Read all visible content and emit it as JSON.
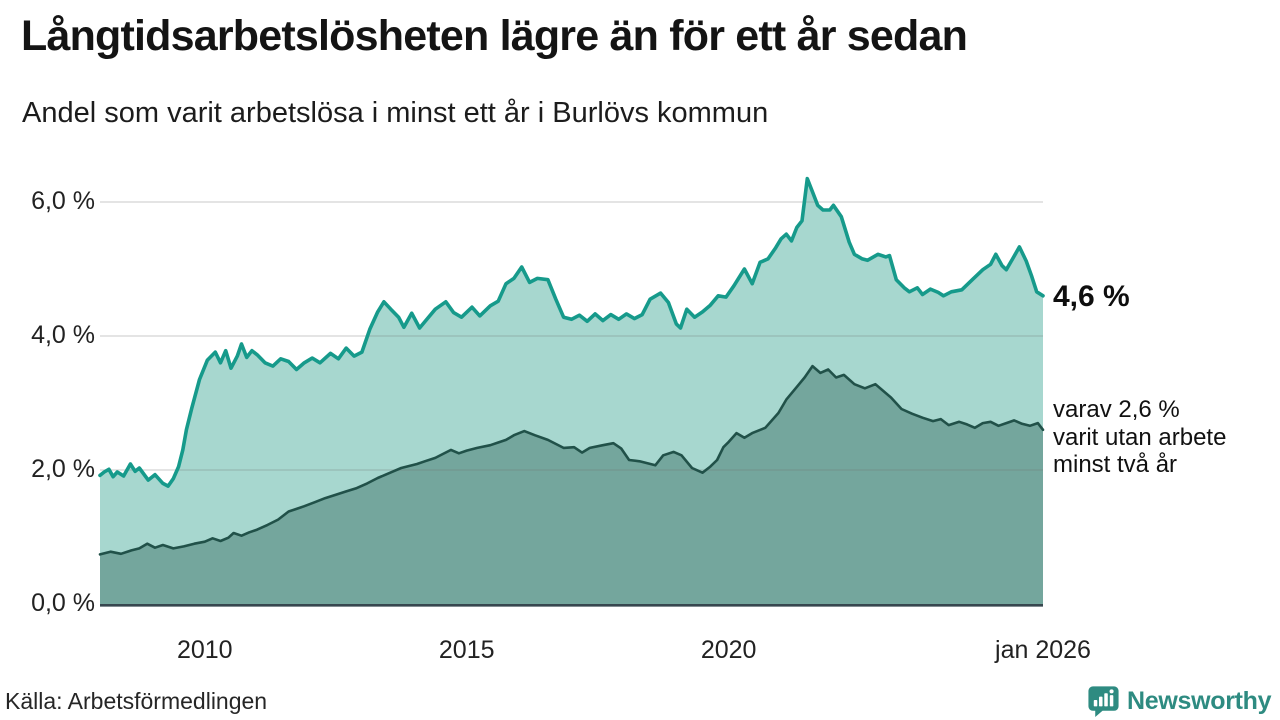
{
  "header": {
    "title": "Långtidsarbetslösheten lägre än för ett år sedan",
    "subtitle": "Andel som varit arbetslösa i minst ett år i Burlövs kommun"
  },
  "annotations": {
    "latest_value": "4,6 %",
    "secondary_line1": "varav 2,6 %",
    "secondary_line2": "varit utan arbete",
    "secondary_line3": "minst två år"
  },
  "footer": {
    "source": "Källa: Arbetsförmedlingen",
    "brand": "Newsworthy"
  },
  "colors": {
    "series1_line": "#169a8b",
    "series1_fill": "#a7d7cf",
    "series2_line": "#215149",
    "series2_fill": "#74a69d",
    "axis_line": "#37474f",
    "grid_line": "rgba(110,110,110,0.25)",
    "brand_teal": "#2e8b81"
  },
  "chart_data": {
    "type": "area",
    "title": "Långtidsarbetslösheten lägre än för ett år sedan",
    "subtitle": "Andel som varit arbetslösa i minst ett år i Burlövs kommun",
    "x_unit": "decimal_year",
    "x_range": [
      2008.0,
      2026.0
    ],
    "ylim": [
      0,
      6.55
    ],
    "grid": true,
    "grid_values": [
      2,
      4,
      6
    ],
    "y_ticks": [
      {
        "value": 0,
        "label": "0,0 %"
      },
      {
        "value": 2,
        "label": "2,0 %"
      },
      {
        "value": 4,
        "label": "4,0 %"
      },
      {
        "value": 6,
        "label": "6,0 %"
      }
    ],
    "x_ticks": [
      {
        "year": 2010,
        "label": "2010"
      },
      {
        "year": 2015,
        "label": "2015"
      },
      {
        "year": 2020,
        "label": "2020"
      },
      {
        "year": 2026,
        "label": "jan 2026"
      }
    ],
    "series": [
      {
        "name": "arbetslösa minst ett år",
        "end_label": "4,6 %",
        "line_color": "#169a8b",
        "fill_color": "#a7d7cf",
        "line_width": 3.6,
        "points": [
          [
            2008.0,
            1.92
          ],
          [
            2008.08,
            1.97
          ],
          [
            2008.17,
            2.01
          ],
          [
            2008.25,
            1.9
          ],
          [
            2008.33,
            1.97
          ],
          [
            2008.45,
            1.91
          ],
          [
            2008.58,
            2.09
          ],
          [
            2008.67,
            1.98
          ],
          [
            2008.75,
            2.03
          ],
          [
            2008.92,
            1.85
          ],
          [
            2009.05,
            1.93
          ],
          [
            2009.2,
            1.8
          ],
          [
            2009.3,
            1.76
          ],
          [
            2009.4,
            1.87
          ],
          [
            2009.5,
            2.05
          ],
          [
            2009.58,
            2.3
          ],
          [
            2009.65,
            2.6
          ],
          [
            2009.75,
            2.92
          ],
          [
            2009.9,
            3.35
          ],
          [
            2010.05,
            3.64
          ],
          [
            2010.2,
            3.76
          ],
          [
            2010.3,
            3.6
          ],
          [
            2010.4,
            3.78
          ],
          [
            2010.5,
            3.52
          ],
          [
            2010.62,
            3.7
          ],
          [
            2010.7,
            3.88
          ],
          [
            2010.8,
            3.68
          ],
          [
            2010.9,
            3.78
          ],
          [
            2011.0,
            3.72
          ],
          [
            2011.15,
            3.6
          ],
          [
            2011.3,
            3.55
          ],
          [
            2011.45,
            3.66
          ],
          [
            2011.6,
            3.62
          ],
          [
            2011.75,
            3.5
          ],
          [
            2011.9,
            3.6
          ],
          [
            2012.05,
            3.67
          ],
          [
            2012.2,
            3.6
          ],
          [
            2012.4,
            3.74
          ],
          [
            2012.55,
            3.66
          ],
          [
            2012.7,
            3.82
          ],
          [
            2012.85,
            3.7
          ],
          [
            2013.0,
            3.76
          ],
          [
            2013.15,
            4.1
          ],
          [
            2013.3,
            4.36
          ],
          [
            2013.42,
            4.51
          ],
          [
            2013.55,
            4.4
          ],
          [
            2013.7,
            4.28
          ],
          [
            2013.8,
            4.13
          ],
          [
            2013.95,
            4.34
          ],
          [
            2014.1,
            4.12
          ],
          [
            2014.25,
            4.26
          ],
          [
            2014.4,
            4.4
          ],
          [
            2014.6,
            4.51
          ],
          [
            2014.75,
            4.35
          ],
          [
            2014.9,
            4.28
          ],
          [
            2015.1,
            4.43
          ],
          [
            2015.25,
            4.3
          ],
          [
            2015.45,
            4.45
          ],
          [
            2015.6,
            4.52
          ],
          [
            2015.75,
            4.78
          ],
          [
            2015.9,
            4.86
          ],
          [
            2016.05,
            5.03
          ],
          [
            2016.2,
            4.8
          ],
          [
            2016.35,
            4.86
          ],
          [
            2016.55,
            4.84
          ],
          [
            2016.7,
            4.55
          ],
          [
            2016.85,
            4.28
          ],
          [
            2017.0,
            4.25
          ],
          [
            2017.15,
            4.31
          ],
          [
            2017.3,
            4.22
          ],
          [
            2017.45,
            4.33
          ],
          [
            2017.6,
            4.23
          ],
          [
            2017.75,
            4.32
          ],
          [
            2017.9,
            4.25
          ],
          [
            2018.05,
            4.33
          ],
          [
            2018.2,
            4.26
          ],
          [
            2018.35,
            4.32
          ],
          [
            2018.5,
            4.55
          ],
          [
            2018.7,
            4.64
          ],
          [
            2018.85,
            4.5
          ],
          [
            2019.0,
            4.18
          ],
          [
            2019.08,
            4.12
          ],
          [
            2019.2,
            4.4
          ],
          [
            2019.35,
            4.28
          ],
          [
            2019.5,
            4.36
          ],
          [
            2019.65,
            4.46
          ],
          [
            2019.8,
            4.6
          ],
          [
            2019.95,
            4.58
          ],
          [
            2020.1,
            4.75
          ],
          [
            2020.3,
            5.0
          ],
          [
            2020.45,
            4.78
          ],
          [
            2020.6,
            5.1
          ],
          [
            2020.75,
            5.15
          ],
          [
            2020.9,
            5.32
          ],
          [
            2021.0,
            5.45
          ],
          [
            2021.1,
            5.52
          ],
          [
            2021.2,
            5.42
          ],
          [
            2021.3,
            5.62
          ],
          [
            2021.4,
            5.72
          ],
          [
            2021.5,
            6.35
          ],
          [
            2021.6,
            6.15
          ],
          [
            2021.7,
            5.95
          ],
          [
            2021.8,
            5.88
          ],
          [
            2021.93,
            5.88
          ],
          [
            2022.0,
            5.95
          ],
          [
            2022.15,
            5.78
          ],
          [
            2022.3,
            5.4
          ],
          [
            2022.4,
            5.22
          ],
          [
            2022.55,
            5.15
          ],
          [
            2022.65,
            5.13
          ],
          [
            2022.85,
            5.22
          ],
          [
            2023.0,
            5.18
          ],
          [
            2023.07,
            5.2
          ],
          [
            2023.2,
            4.84
          ],
          [
            2023.35,
            4.72
          ],
          [
            2023.45,
            4.66
          ],
          [
            2023.6,
            4.72
          ],
          [
            2023.7,
            4.62
          ],
          [
            2023.85,
            4.7
          ],
          [
            2024.0,
            4.65
          ],
          [
            2024.1,
            4.6
          ],
          [
            2024.25,
            4.66
          ],
          [
            2024.45,
            4.69
          ],
          [
            2024.65,
            4.84
          ],
          [
            2024.85,
            4.99
          ],
          [
            2025.0,
            5.07
          ],
          [
            2025.1,
            5.22
          ],
          [
            2025.22,
            5.05
          ],
          [
            2025.3,
            4.99
          ],
          [
            2025.42,
            5.15
          ],
          [
            2025.55,
            5.33
          ],
          [
            2025.68,
            5.12
          ],
          [
            2025.78,
            4.9
          ],
          [
            2025.88,
            4.66
          ],
          [
            2026.0,
            4.6
          ]
        ]
      },
      {
        "name": "varav arbetslösa minst två år",
        "end_label": "2,6 %",
        "line_color": "#215149",
        "fill_color": "#74a69d",
        "line_width": 2.6,
        "points": [
          [
            2008.0,
            0.74
          ],
          [
            2008.2,
            0.78
          ],
          [
            2008.4,
            0.75
          ],
          [
            2008.6,
            0.8
          ],
          [
            2008.75,
            0.83
          ],
          [
            2008.9,
            0.9
          ],
          [
            2009.05,
            0.84
          ],
          [
            2009.2,
            0.88
          ],
          [
            2009.4,
            0.83
          ],
          [
            2009.6,
            0.86
          ],
          [
            2009.8,
            0.9
          ],
          [
            2010.0,
            0.93
          ],
          [
            2010.15,
            0.98
          ],
          [
            2010.3,
            0.94
          ],
          [
            2010.45,
            0.99
          ],
          [
            2010.55,
            1.06
          ],
          [
            2010.7,
            1.02
          ],
          [
            2010.85,
            1.07
          ],
          [
            2011.0,
            1.11
          ],
          [
            2011.2,
            1.18
          ],
          [
            2011.4,
            1.26
          ],
          [
            2011.6,
            1.38
          ],
          [
            2011.75,
            1.42
          ],
          [
            2011.9,
            1.46
          ],
          [
            2012.1,
            1.52
          ],
          [
            2012.3,
            1.58
          ],
          [
            2012.5,
            1.63
          ],
          [
            2012.7,
            1.68
          ],
          [
            2012.9,
            1.73
          ],
          [
            2013.1,
            1.8
          ],
          [
            2013.3,
            1.88
          ],
          [
            2013.45,
            1.93
          ],
          [
            2013.6,
            1.98
          ],
          [
            2013.75,
            2.03
          ],
          [
            2013.9,
            2.06
          ],
          [
            2014.05,
            2.09
          ],
          [
            2014.2,
            2.13
          ],
          [
            2014.4,
            2.18
          ],
          [
            2014.55,
            2.24
          ],
          [
            2014.7,
            2.3
          ],
          [
            2014.85,
            2.25
          ],
          [
            2015.0,
            2.29
          ],
          [
            2015.2,
            2.33
          ],
          [
            2015.45,
            2.37
          ],
          [
            2015.6,
            2.41
          ],
          [
            2015.75,
            2.45
          ],
          [
            2015.9,
            2.52
          ],
          [
            2016.1,
            2.58
          ],
          [
            2016.3,
            2.52
          ],
          [
            2016.55,
            2.45
          ],
          [
            2016.85,
            2.33
          ],
          [
            2017.05,
            2.34
          ],
          [
            2017.2,
            2.26
          ],
          [
            2017.35,
            2.33
          ],
          [
            2017.6,
            2.37
          ],
          [
            2017.8,
            2.4
          ],
          [
            2017.95,
            2.32
          ],
          [
            2018.1,
            2.15
          ],
          [
            2018.3,
            2.13
          ],
          [
            2018.45,
            2.1
          ],
          [
            2018.6,
            2.07
          ],
          [
            2018.75,
            2.22
          ],
          [
            2018.95,
            2.27
          ],
          [
            2019.1,
            2.22
          ],
          [
            2019.3,
            2.03
          ],
          [
            2019.5,
            1.96
          ],
          [
            2019.65,
            2.05
          ],
          [
            2019.78,
            2.15
          ],
          [
            2019.9,
            2.34
          ],
          [
            2020.0,
            2.42
          ],
          [
            2020.15,
            2.55
          ],
          [
            2020.3,
            2.48
          ],
          [
            2020.45,
            2.55
          ],
          [
            2020.7,
            2.63
          ],
          [
            2020.95,
            2.85
          ],
          [
            2021.1,
            3.05
          ],
          [
            2021.3,
            3.24
          ],
          [
            2021.45,
            3.38
          ],
          [
            2021.6,
            3.55
          ],
          [
            2021.75,
            3.45
          ],
          [
            2021.9,
            3.5
          ],
          [
            2022.05,
            3.38
          ],
          [
            2022.2,
            3.42
          ],
          [
            2022.4,
            3.28
          ],
          [
            2022.6,
            3.22
          ],
          [
            2022.8,
            3.28
          ],
          [
            2022.95,
            3.18
          ],
          [
            2023.1,
            3.08
          ],
          [
            2023.3,
            2.91
          ],
          [
            2023.5,
            2.84
          ],
          [
            2023.7,
            2.78
          ],
          [
            2023.9,
            2.73
          ],
          [
            2024.05,
            2.76
          ],
          [
            2024.2,
            2.67
          ],
          [
            2024.4,
            2.72
          ],
          [
            2024.55,
            2.68
          ],
          [
            2024.7,
            2.63
          ],
          [
            2024.85,
            2.7
          ],
          [
            2025.0,
            2.72
          ],
          [
            2025.15,
            2.66
          ],
          [
            2025.3,
            2.7
          ],
          [
            2025.45,
            2.74
          ],
          [
            2025.6,
            2.69
          ],
          [
            2025.75,
            2.66
          ],
          [
            2025.9,
            2.7
          ],
          [
            2026.0,
            2.6
          ]
        ]
      }
    ],
    "legend_position": "right-annotations"
  }
}
